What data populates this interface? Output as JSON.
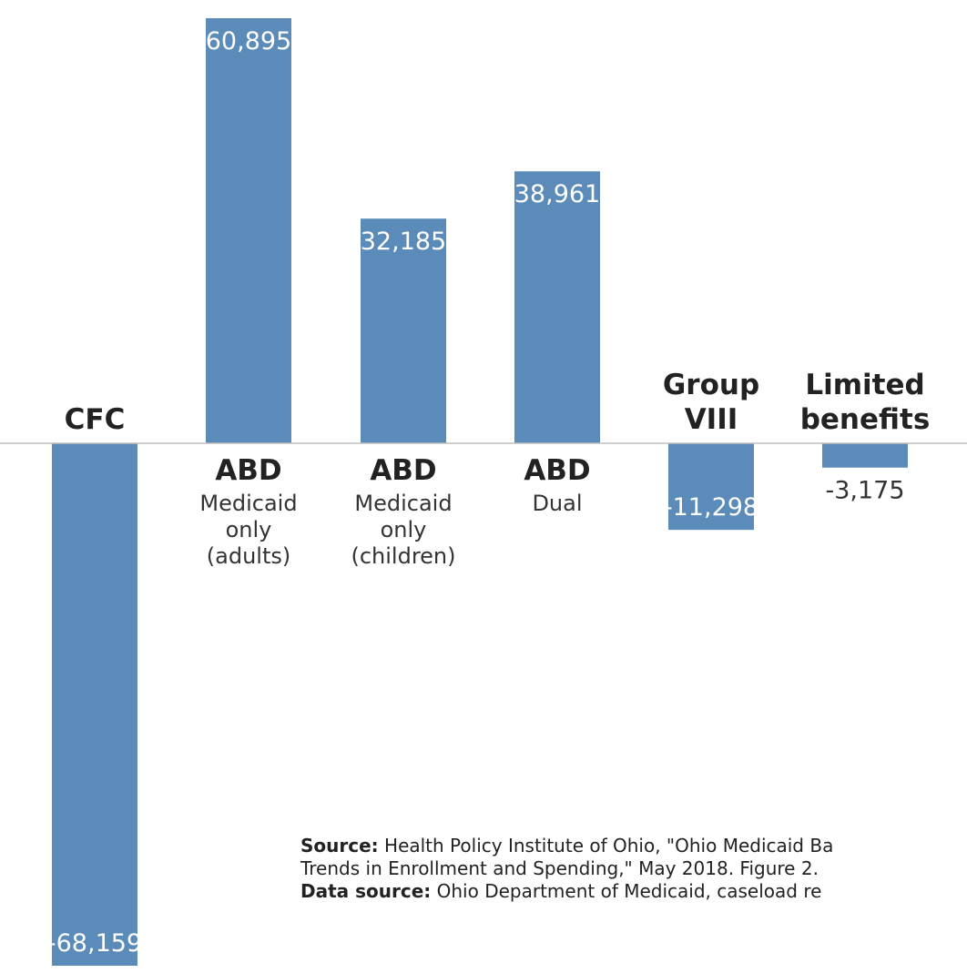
{
  "chart_data": {
    "type": "bar",
    "title": "",
    "xlabel": "",
    "ylabel": "",
    "ylim": [
      -70000,
      62000
    ],
    "grid": false,
    "categories": [
      {
        "name": "CFC",
        "sub": []
      },
      {
        "name": "ABD",
        "sub": [
          "Medicaid",
          "only",
          "(adults)"
        ]
      },
      {
        "name": "ABD",
        "sub": [
          "Medicaid",
          "only",
          "(children)"
        ]
      },
      {
        "name": "ABD",
        "sub": [
          "Dual"
        ]
      },
      {
        "name": "Group VIII",
        "sub": []
      },
      {
        "name": "Limited benefits",
        "sub": []
      }
    ],
    "values": [
      -68159,
      60895,
      32185,
      38961,
      -11298,
      -3175
    ],
    "value_labels": [
      "-68,159",
      "60,895",
      "32,185",
      "38,961",
      "-11,298",
      "-3,175"
    ],
    "bar_color": "#5b8bb8"
  },
  "source": {
    "label": "Source:",
    "text_line1": " Health Policy Institute of Ohio, \"Ohio Medicaid Ba",
    "text_line2": "Trends in Enrollment and Spending,\" May 2018. Figure 2.",
    "data_label": "Data source:",
    "data_text": " Ohio Department of Medicaid, caseload re"
  }
}
